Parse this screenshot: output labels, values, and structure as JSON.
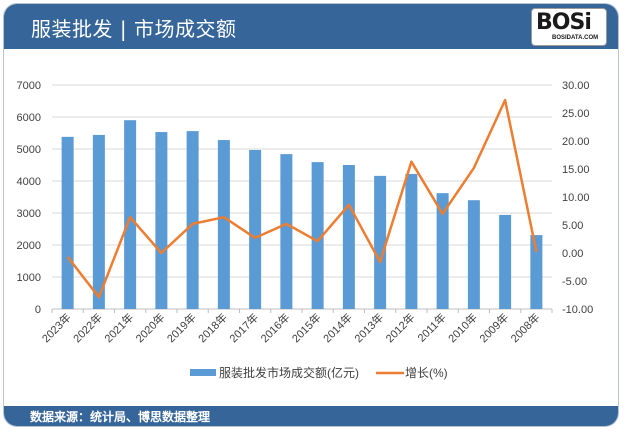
{
  "header": {
    "title": "服装批发 | 市场成交额",
    "logo_text": "BOSi",
    "logo_sub": "BOSIDATA.COM"
  },
  "footer": {
    "source": "数据来源：统计局、博思数据整理"
  },
  "colors": {
    "header_bg": "#36659a",
    "bar": "#5b9bd5",
    "line": "#ed7d31",
    "grid": "#d9d9d9"
  },
  "chart_data": {
    "type": "bar+line",
    "title": "服装批发 | 市场成交额",
    "categories": [
      "2023年",
      "2022年",
      "2021年",
      "2020年",
      "2019年",
      "2018年",
      "2017年",
      "2016年",
      "2015年",
      "2014年",
      "2013年",
      "2012年",
      "2011年",
      "2010年",
      "2009年",
      "2008年"
    ],
    "series": [
      {
        "name": "服装批发市场成交额(亿元)",
        "type": "bar",
        "axis": "left",
        "values": [
          5380,
          5440,
          5900,
          5530,
          5560,
          5280,
          4970,
          4840,
          4590,
          4500,
          4160,
          4220,
          3620,
          3400,
          2940,
          2310
        ]
      },
      {
        "name": "增长(%)",
        "type": "line",
        "axis": "right",
        "values": [
          -0.7,
          -7.9,
          6.4,
          0.0,
          5.2,
          6.4,
          2.7,
          5.2,
          2.1,
          8.6,
          -1.6,
          16.3,
          7.0,
          15.2,
          27.3,
          0.2
        ]
      }
    ],
    "left_axis": {
      "ticks": [
        "0",
        "1000",
        "2000",
        "3000",
        "4000",
        "5000",
        "6000",
        "7000"
      ],
      "ylim": [
        0,
        7000
      ]
    },
    "right_axis": {
      "ticks": [
        "-10.00",
        "-5.00",
        "0.00",
        "5.00",
        "10.00",
        "15.00",
        "20.00",
        "25.00",
        "30.00"
      ],
      "ylim": [
        -10,
        30
      ]
    },
    "legend": [
      "服装批发市场成交额(亿元)",
      "增长(%)"
    ],
    "legend_position": "bottom",
    "grid": true
  }
}
